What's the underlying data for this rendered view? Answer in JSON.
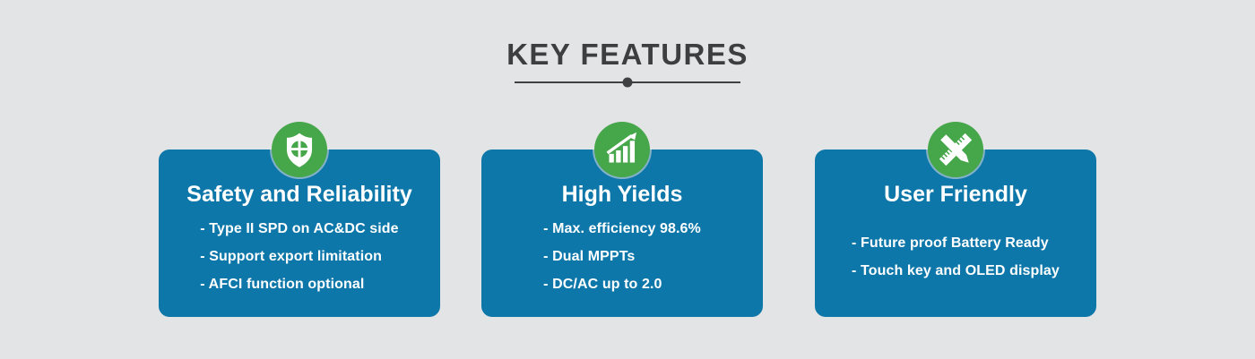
{
  "page": {
    "background_color": "#e2e4e6",
    "card_color": "#0e77a9",
    "icon_color": "#46a64a",
    "title_color": "#3d3e40",
    "text_color": "#ffffff"
  },
  "header": {
    "title": "KEY FEATURES"
  },
  "cards": [
    {
      "icon": "shield-check-icon",
      "title": "Safety and Reliability",
      "bullets": [
        "- Type II SPD on AC&DC side",
        "- Support export limitation",
        "- AFCI function optional"
      ]
    },
    {
      "icon": "growth-chart-icon",
      "title": "High Yields",
      "bullets": [
        "- Max. efficiency 98.6%",
        "- Dual MPPTs",
        "- DC/AC up to 2.0"
      ]
    },
    {
      "icon": "ruler-pencil-icon",
      "title": "User Friendly",
      "bullets": [
        "- Future proof Battery Ready",
        "- Touch key and OLED display"
      ]
    }
  ]
}
